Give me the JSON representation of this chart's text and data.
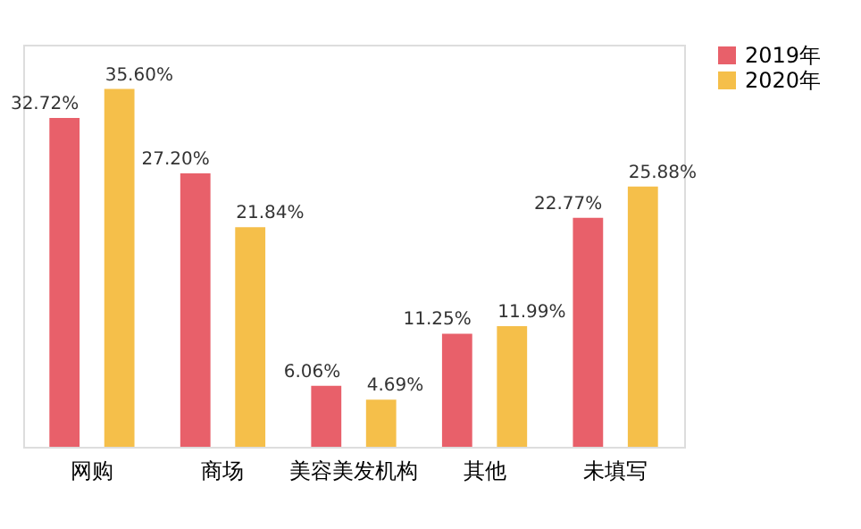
{
  "chart_data": {
    "type": "bar",
    "categories": [
      "网购",
      "商场",
      "美容美发机构",
      "其他",
      "未填写"
    ],
    "series": [
      {
        "name": "2019年",
        "color": "#e8606a",
        "values": [
          32.72,
          27.2,
          6.06,
          11.25,
          22.77
        ],
        "value_labels": [
          "32.72%",
          "27.20%",
          "6.06%",
          "11.25%",
          "22.77%"
        ]
      },
      {
        "name": "2020年",
        "color": "#f5bf4a",
        "values": [
          35.6,
          21.84,
          4.69,
          11.99,
          25.88
        ],
        "value_labels": [
          "35.60%",
          "21.84%",
          "4.69%",
          "11.99%",
          "25.88%"
        ]
      }
    ],
    "legend": "right",
    "grid": false,
    "tick_labels": "x"
  }
}
